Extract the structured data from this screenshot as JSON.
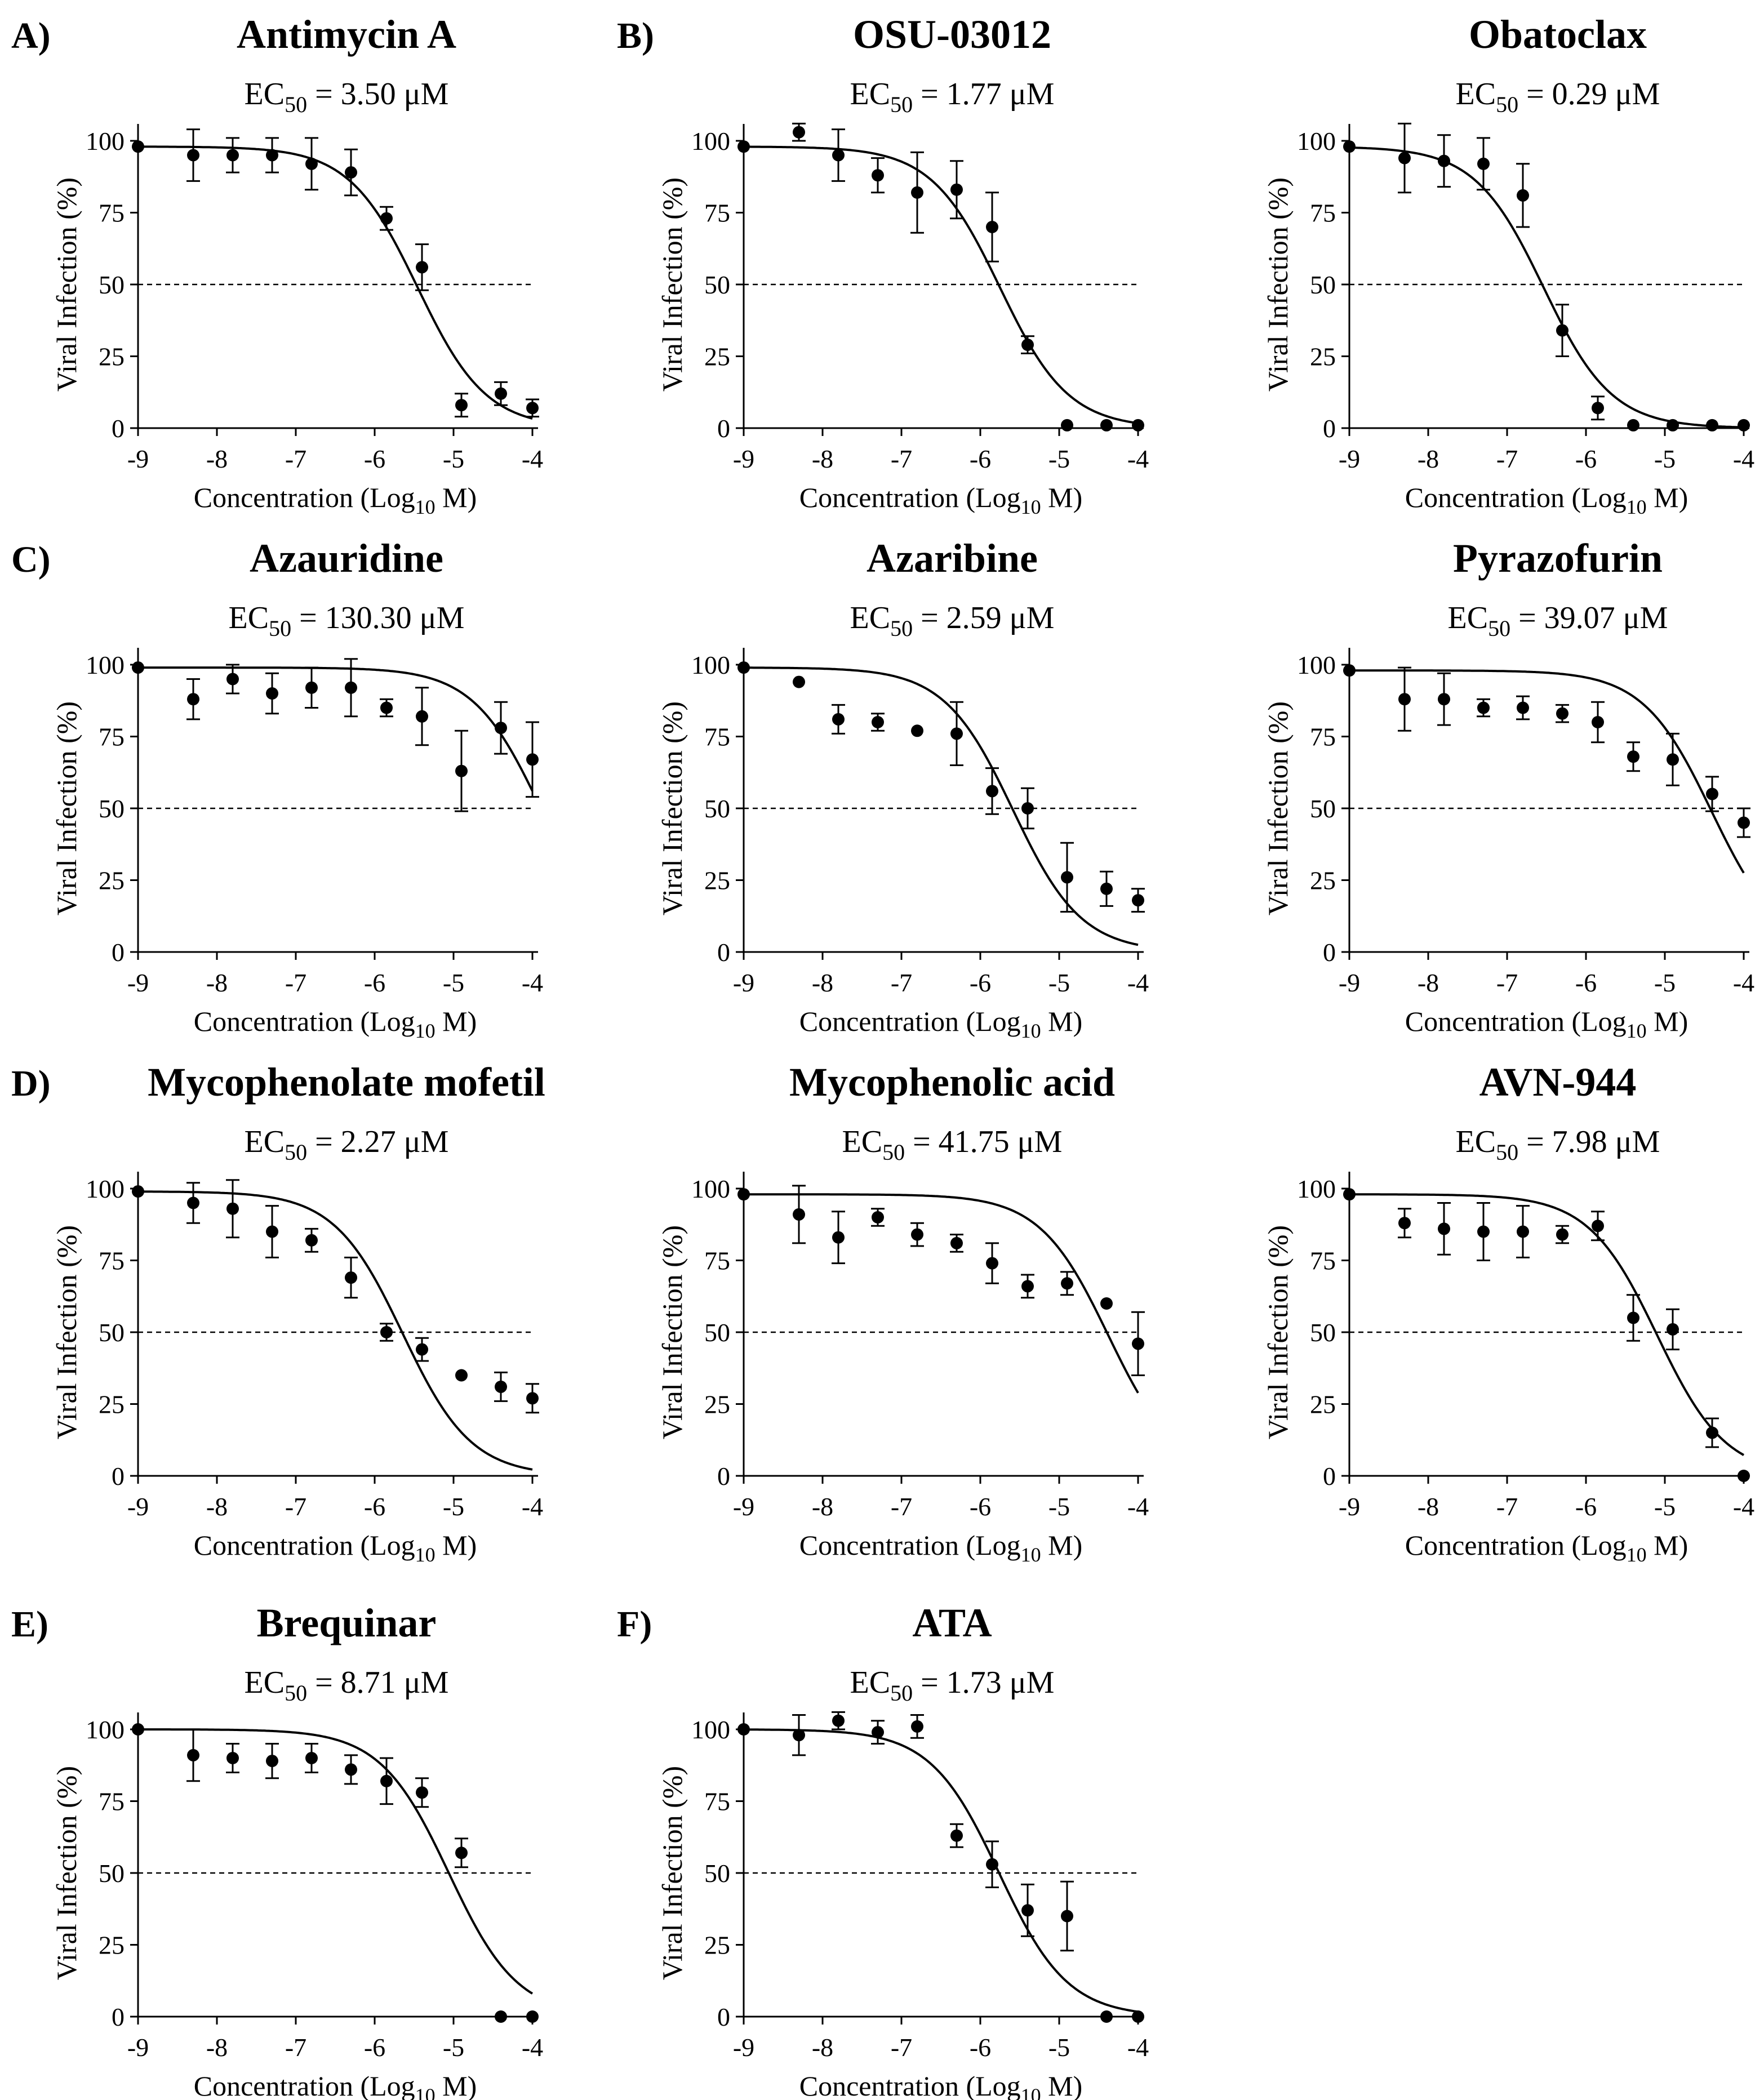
{
  "figure": {
    "background": "#ffffff",
    "ink": "#000000"
  },
  "chart_data": [
    {
      "type": "scatter",
      "panel_letter": "A)",
      "title": "Antimycin A",
      "ec_prefix": "EC",
      "ec_sub": "50",
      "ec_value": "= 3.50 μM",
      "ylabel": "Viral Infection (%)",
      "xlabel_prefix": "Concentration (Log",
      "xlabel_sub": "10",
      "xlabel_suffix": " M)",
      "xlim": [
        -9,
        -4
      ],
      "ylim": [
        0,
        100
      ],
      "xticks": [
        "-9",
        "-8",
        "-7",
        "-6",
        "-5",
        "-4"
      ],
      "yticks": [
        "0",
        "25",
        "50",
        "75",
        "100"
      ],
      "reference_line": 50,
      "fit": {
        "top": 98,
        "bottom": 0,
        "log_ec50": -5.456,
        "hill": 1.0
      },
      "x": [
        -9,
        -8.3,
        -7.8,
        -7.3,
        -6.8,
        -6.3,
        -5.85,
        -5.4,
        -4.9,
        -4.4,
        -4.0
      ],
      "y": [
        98,
        95,
        95,
        95,
        92,
        89,
        73,
        56,
        8,
        12,
        7
      ],
      "err": [
        0,
        9,
        6,
        6,
        9,
        8,
        4,
        8,
        4,
        4,
        3
      ]
    },
    {
      "type": "scatter",
      "panel_letter": "B)",
      "title": "OSU-03012",
      "ec_prefix": "EC",
      "ec_sub": "50",
      "ec_value": "= 1.77 μM",
      "ylabel": "Viral Infection (%)",
      "xlabel_prefix": "Concentration (Log",
      "xlabel_sub": "10",
      "xlabel_suffix": " M)",
      "xlim": [
        -9,
        -4
      ],
      "ylim": [
        0,
        100
      ],
      "xticks": [
        "-9",
        "-8",
        "-7",
        "-6",
        "-5",
        "-4"
      ],
      "yticks": [
        "0",
        "25",
        "50",
        "75",
        "100"
      ],
      "reference_line": 50,
      "fit": {
        "top": 98,
        "bottom": 0,
        "log_ec50": -5.752,
        "hill": 1.0
      },
      "x": [
        -9,
        -8.3,
        -7.8,
        -7.3,
        -6.8,
        -6.3,
        -5.85,
        -5.4,
        -4.9,
        -4.4,
        -4.0
      ],
      "y": [
        98,
        103,
        95,
        88,
        82,
        83,
        70,
        29,
        1,
        1,
        1
      ],
      "err": [
        0,
        3,
        9,
        6,
        14,
        10,
        12,
        3,
        0,
        0,
        0
      ]
    },
    {
      "type": "scatter",
      "panel_letter": "",
      "title": "Obatoclax",
      "ec_prefix": "EC",
      "ec_sub": "50",
      "ec_value": "= 0.29 μM",
      "ylabel": "Viral Infection (%)",
      "xlabel_prefix": "Concentration (Log",
      "xlabel_sub": "10",
      "xlabel_suffix": " M)",
      "xlim": [
        -9,
        -4
      ],
      "ylim": [
        0,
        100
      ],
      "xticks": [
        "-9",
        "-8",
        "-7",
        "-6",
        "-5",
        "-4"
      ],
      "yticks": [
        "0",
        "25",
        "50",
        "75",
        "100"
      ],
      "reference_line": 50,
      "fit": {
        "top": 98,
        "bottom": 0,
        "log_ec50": -6.538,
        "hill": 1.0
      },
      "x": [
        -9,
        -8.3,
        -7.8,
        -7.3,
        -6.8,
        -6.3,
        -5.85,
        -5.4,
        -4.9,
        -4.4,
        -4.0
      ],
      "y": [
        98,
        94,
        93,
        92,
        81,
        34,
        7,
        1,
        1,
        1,
        1
      ],
      "err": [
        0,
        12,
        9,
        9,
        11,
        9,
        4,
        0,
        0,
        0,
        0
      ]
    },
    {
      "type": "scatter",
      "panel_letter": "C)",
      "title": "Azauridine",
      "ec_prefix": "EC",
      "ec_sub": "50",
      "ec_value": "= 130.30 μM",
      "ylabel": "Viral Infection (%)",
      "xlabel_prefix": "Concentration (Log",
      "xlabel_sub": "10",
      "xlabel_suffix": " M)",
      "xlim": [
        -9,
        -4
      ],
      "ylim": [
        0,
        100
      ],
      "xticks": [
        "-9",
        "-8",
        "-7",
        "-6",
        "-5",
        "-4"
      ],
      "yticks": [
        "0",
        "25",
        "50",
        "75",
        "100"
      ],
      "reference_line": 50,
      "fit": {
        "top": 99,
        "bottom": 0,
        "log_ec50": -3.885,
        "hill": 1.0
      },
      "x": [
        -9,
        -8.3,
        -7.8,
        -7.3,
        -6.8,
        -6.3,
        -5.85,
        -5.4,
        -4.9,
        -4.4,
        -4.0
      ],
      "y": [
        99,
        88,
        95,
        90,
        92,
        92,
        85,
        82,
        63,
        78,
        67
      ],
      "err": [
        0,
        7,
        5,
        7,
        7,
        10,
        3,
        10,
        14,
        9,
        13
      ]
    },
    {
      "type": "scatter",
      "panel_letter": "",
      "title": "Azaribine",
      "ec_prefix": "EC",
      "ec_sub": "50",
      "ec_value": "= 2.59 μM",
      "ylabel": "Viral Infection (%)",
      "xlabel_prefix": "Concentration (Log",
      "xlabel_sub": "10",
      "xlabel_suffix": " M)",
      "xlim": [
        -9,
        -4
      ],
      "ylim": [
        0,
        100
      ],
      "xticks": [
        "-9",
        "-8",
        "-7",
        "-6",
        "-5",
        "-4"
      ],
      "yticks": [
        "0",
        "25",
        "50",
        "75",
        "100"
      ],
      "reference_line": 50,
      "fit": {
        "top": 99,
        "bottom": 0,
        "log_ec50": -5.587,
        "hill": 1.0
      },
      "x": [
        -9,
        -8.3,
        -7.8,
        -7.3,
        -6.8,
        -6.3,
        -5.85,
        -5.4,
        -4.9,
        -4.4,
        -4.0
      ],
      "y": [
        99,
        94,
        81,
        80,
        77,
        76,
        56,
        50,
        26,
        22,
        18
      ],
      "err": [
        0,
        0,
        5,
        3,
        0,
        11,
        8,
        7,
        12,
        6,
        4
      ]
    },
    {
      "type": "scatter",
      "panel_letter": "",
      "title": "Pyrazofurin",
      "ec_prefix": "EC",
      "ec_sub": "50",
      "ec_value": "= 39.07 μM",
      "ylabel": "Viral Infection (%)",
      "xlabel_prefix": "Concentration (Log",
      "xlabel_sub": "10",
      "xlabel_suffix": " M)",
      "xlim": [
        -9,
        -4
      ],
      "ylim": [
        0,
        100
      ],
      "xticks": [
        "-9",
        "-8",
        "-7",
        "-6",
        "-5",
        "-4"
      ],
      "yticks": [
        "0",
        "25",
        "50",
        "75",
        "100"
      ],
      "reference_line": 50,
      "fit": {
        "top": 98,
        "bottom": 0,
        "log_ec50": -4.408,
        "hill": 1.0
      },
      "x": [
        -9,
        -8.3,
        -7.8,
        -7.3,
        -6.8,
        -6.3,
        -5.85,
        -5.4,
        -4.9,
        -4.4,
        -4.0
      ],
      "y": [
        98,
        88,
        88,
        85,
        85,
        83,
        80,
        68,
        67,
        55,
        45
      ],
      "err": [
        0,
        11,
        9,
        3,
        4,
        3,
        7,
        5,
        9,
        6,
        5
      ]
    },
    {
      "type": "scatter",
      "panel_letter": "D)",
      "title": "Mycophenolate mofetil",
      "ec_prefix": "EC",
      "ec_sub": "50",
      "ec_value": "= 2.27 μM",
      "ylabel": "Viral Infection (%)",
      "xlabel_prefix": "Concentration (Log",
      "xlabel_sub": "10",
      "xlabel_suffix": " M)",
      "xlim": [
        -9,
        -4
      ],
      "ylim": [
        0,
        100
      ],
      "xticks": [
        "-9",
        "-8",
        "-7",
        "-6",
        "-5",
        "-4"
      ],
      "yticks": [
        "0",
        "25",
        "50",
        "75",
        "100"
      ],
      "reference_line": 50,
      "fit": {
        "top": 99,
        "bottom": 0,
        "log_ec50": -5.644,
        "hill": 1.0
      },
      "x": [
        -9,
        -8.3,
        -7.8,
        -7.3,
        -6.8,
        -6.3,
        -5.85,
        -5.4,
        -4.9,
        -4.4,
        -4.0
      ],
      "y": [
        99,
        95,
        93,
        85,
        82,
        69,
        50,
        44,
        35,
        31,
        27
      ],
      "err": [
        0,
        7,
        10,
        9,
        4,
        7,
        3,
        4,
        0,
        5,
        5
      ]
    },
    {
      "type": "scatter",
      "panel_letter": "",
      "title": "Mycophenolic acid",
      "ec_prefix": "EC",
      "ec_sub": "50",
      "ec_value": "= 41.75 μM",
      "ylabel": "Viral Infection (%)",
      "xlabel_prefix": "Concentration (Log",
      "xlabel_sub": "10",
      "xlabel_suffix": " M)",
      "xlim": [
        -9,
        -4
      ],
      "ylim": [
        0,
        100
      ],
      "xticks": [
        "-9",
        "-8",
        "-7",
        "-6",
        "-5",
        "-4"
      ],
      "yticks": [
        "0",
        "25",
        "50",
        "75",
        "100"
      ],
      "reference_line": 50,
      "fit": {
        "top": 98,
        "bottom": 0,
        "log_ec50": -4.379,
        "hill": 1.0
      },
      "x": [
        -9,
        -8.3,
        -7.8,
        -7.3,
        -6.8,
        -6.3,
        -5.85,
        -5.4,
        -4.9,
        -4.4,
        -4.0
      ],
      "y": [
        98,
        91,
        83,
        90,
        84,
        81,
        74,
        66,
        67,
        60,
        46
      ],
      "err": [
        0,
        10,
        9,
        3,
        4,
        3,
        7,
        4,
        4,
        0,
        11
      ]
    },
    {
      "type": "scatter",
      "panel_letter": "",
      "title": "AVN-944",
      "ec_prefix": "EC",
      "ec_sub": "50",
      "ec_value": "= 7.98 μM",
      "ylabel": "Viral Infection (%)",
      "xlabel_prefix": "Concentration (Log",
      "xlabel_sub": "10",
      "xlabel_suffix": " M)",
      "xlim": [
        -9,
        -4
      ],
      "ylim": [
        0,
        100
      ],
      "xticks": [
        "-9",
        "-8",
        "-7",
        "-6",
        "-5",
        "-4"
      ],
      "yticks": [
        "0",
        "25",
        "50",
        "75",
        "100"
      ],
      "reference_line": 50,
      "fit": {
        "top": 98,
        "bottom": 0,
        "log_ec50": -5.098,
        "hill": 1.0
      },
      "x": [
        -9,
        -8.3,
        -7.8,
        -7.3,
        -6.8,
        -6.3,
        -5.85,
        -5.4,
        -4.9,
        -4.4,
        -4.0
      ],
      "y": [
        98,
        88,
        86,
        85,
        85,
        84,
        87,
        55,
        51,
        15,
        0
      ],
      "err": [
        0,
        5,
        9,
        10,
        9,
        3,
        5,
        8,
        7,
        5,
        0
      ]
    },
    {
      "type": "scatter",
      "panel_letter": "E)",
      "title": "Brequinar",
      "ec_prefix": "EC",
      "ec_sub": "50",
      "ec_value": "= 8.71 μM",
      "ylabel": "Viral Infection (%)",
      "xlabel_prefix": "Concentration (Log",
      "xlabel_sub": "10",
      "xlabel_suffix": " M)",
      "xlim": [
        -9,
        -4
      ],
      "ylim": [
        0,
        100
      ],
      "xticks": [
        "-9",
        "-8",
        "-7",
        "-6",
        "-5",
        "-4"
      ],
      "yticks": [
        "0",
        "25",
        "50",
        "75",
        "100"
      ],
      "reference_line": 50,
      "fit": {
        "top": 100,
        "bottom": 0,
        "log_ec50": -5.06,
        "hill": 1.0
      },
      "x": [
        -9,
        -8.3,
        -7.8,
        -7.3,
        -6.8,
        -6.3,
        -5.85,
        -5.4,
        -4.9,
        -4.4,
        -4.0
      ],
      "y": [
        100,
        91,
        90,
        89,
        90,
        86,
        82,
        78,
        57,
        0,
        0
      ],
      "err": [
        0,
        9,
        5,
        6,
        5,
        5,
        8,
        5,
        5,
        0,
        0
      ]
    },
    {
      "type": "scatter",
      "panel_letter": "F)",
      "title": "ATA",
      "ec_prefix": "EC",
      "ec_sub": "50",
      "ec_value": "= 1.73 μM",
      "ylabel": "Viral Infection (%)",
      "xlabel_prefix": "Concentration (Log",
      "xlabel_sub": "10",
      "xlabel_suffix": " M)",
      "xlim": [
        -9,
        -4
      ],
      "ylim": [
        0,
        100
      ],
      "xticks": [
        "-9",
        "-8",
        "-7",
        "-6",
        "-5",
        "-4"
      ],
      "yticks": [
        "0",
        "25",
        "50",
        "75",
        "100"
      ],
      "reference_line": 50,
      "fit": {
        "top": 100,
        "bottom": 0,
        "log_ec50": -5.762,
        "hill": 1.0
      },
      "x": [
        -9,
        -8.3,
        -7.8,
        -7.3,
        -6.8,
        -6.3,
        -5.85,
        -5.4,
        -4.9,
        -4.4,
        -4.0
      ],
      "y": [
        100,
        98,
        103,
        99,
        101,
        63,
        53,
        37,
        35,
        0,
        0
      ],
      "err": [
        0,
        7,
        3,
        4,
        4,
        4,
        8,
        9,
        12,
        0,
        0
      ]
    }
  ]
}
